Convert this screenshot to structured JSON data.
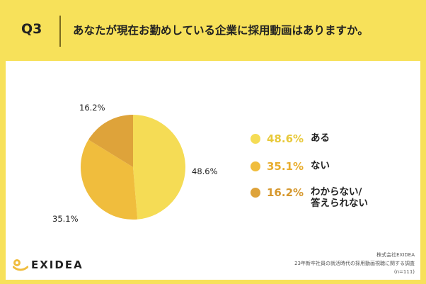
{
  "header": {
    "q_label": "Q3",
    "question": "あなたが現在お勤めしている企業に採用動画はありますか。"
  },
  "chart_data": {
    "type": "pie",
    "slices": [
      {
        "label": "ある",
        "value": 48.6,
        "display": "48.6%",
        "color": "#f5dc55"
      },
      {
        "label": "ない",
        "value": 35.1,
        "display": "35.1%",
        "color": "#f0bd3d"
      },
      {
        "label": "わからない/\n答えられない",
        "value": 16.2,
        "display": "16.2%",
        "color": "#dea33a"
      }
    ]
  },
  "legend": {
    "items": [
      {
        "pct": "48.6%",
        "name_line1": "ある",
        "name_line2": ""
      },
      {
        "pct": "35.1%",
        "name_line1": "ない",
        "name_line2": ""
      },
      {
        "pct": "16.2%",
        "name_line1": "わからない/",
        "name_line2": "答えられない"
      }
    ]
  },
  "brand": {
    "name": "EXIDEA"
  },
  "footer": {
    "company": "株式会社EXIDEA",
    "survey": "23年新卒社員の就活時代の採用動画視聴に関する調査",
    "sample": "(n=111)"
  }
}
